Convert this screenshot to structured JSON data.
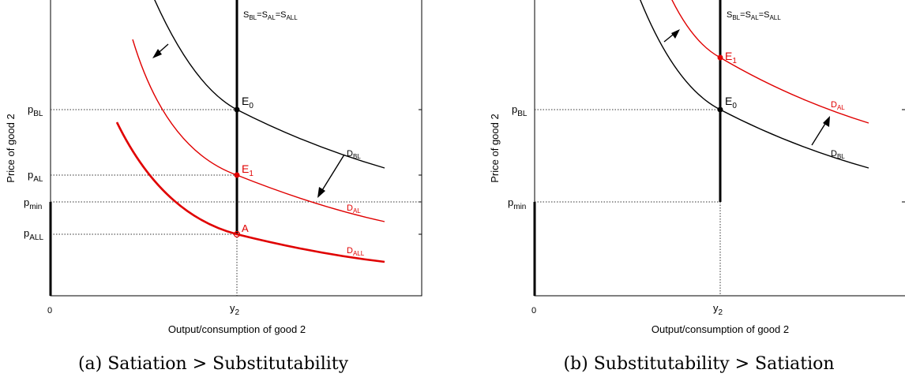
{
  "panels": [
    {
      "caption": "(a) Satiation > Substitutability",
      "xlabel": "Output/consumption of good 2",
      "ylabel": "Price of good 2",
      "x_ticks": {
        "origin": "0",
        "y2": {
          "base": "y",
          "sub": "2"
        }
      },
      "y_ticks": {
        "p_BL": {
          "base": "p",
          "sub": "BL"
        },
        "p_AL": {
          "base": "p",
          "sub": "AL"
        },
        "p_min": {
          "base": "p",
          "sub": "min"
        },
        "p_ALL": {
          "base": "p",
          "sub": "ALL"
        }
      },
      "supply_label": {
        "s1": "BL",
        "s2": "AL",
        "s3": "ALL"
      },
      "points": {
        "E0": {
          "base": "E",
          "sub": "0"
        },
        "E1": {
          "base": "E",
          "sub": "1"
        },
        "A": "A"
      },
      "curve_labels": {
        "D_BL": {
          "base": "D",
          "sub": "BL"
        },
        "D_AL": {
          "base": "D",
          "sub": "AL"
        },
        "D_ALL": {
          "base": "D",
          "sub": "ALL"
        }
      }
    },
    {
      "caption": "(b) Substitutability > Satiation",
      "xlabel": "Output/consumption of good 2",
      "ylabel": "Price of good 2",
      "x_ticks": {
        "origin": "0",
        "y2": {
          "base": "y",
          "sub": "2"
        }
      },
      "y_ticks": {
        "p_BL": {
          "base": "p",
          "sub": "BL"
        },
        "p_min": {
          "base": "p",
          "sub": "min"
        }
      },
      "supply_label": {
        "s1": "BL",
        "s2": "AL",
        "s3": "ALL"
      },
      "points": {
        "E0": {
          "base": "E",
          "sub": "0"
        },
        "E1": {
          "base": "E",
          "sub": "1"
        }
      },
      "curve_labels": {
        "D_BL": {
          "base": "D",
          "sub": "BL"
        },
        "D_AL": {
          "base": "D",
          "sub": "AL"
        }
      }
    }
  ],
  "colors": {
    "black": "#000000",
    "red": "#e00000",
    "dotted": "#333333"
  }
}
